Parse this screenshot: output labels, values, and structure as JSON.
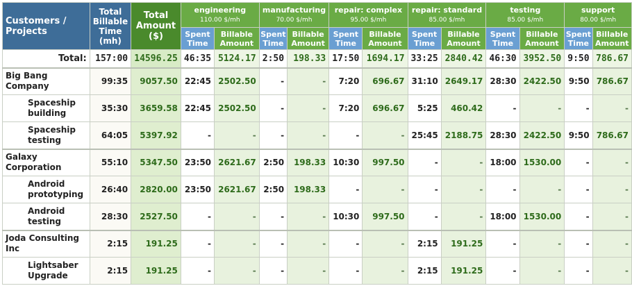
{
  "headers": {
    "customers": "Customers / Projects",
    "total_billable": "Total Billable Time (mh)",
    "total_amount": "Total Amount ($)",
    "spent_time": "Spent Time",
    "billable_amount": "Billable Amount"
  },
  "categories": [
    {
      "name": "engineering",
      "rate": "110.00 $/mh"
    },
    {
      "name": "manufacturing",
      "rate": "70.00 $/mh"
    },
    {
      "name": "repair: complex",
      "rate": "95.00 $/mh"
    },
    {
      "name": "repair: standard",
      "rate": "85.00 $/mh"
    },
    {
      "name": "testing",
      "rate": "85.00 $/mh"
    },
    {
      "name": "support",
      "rate": "80.00 $/mh"
    }
  ],
  "total": {
    "label": "Total:",
    "time": "157:00",
    "amount": "14596.25",
    "cells": [
      "46:35",
      "5124.17",
      "2:50",
      "198.33",
      "17:50",
      "1694.17",
      "33:25",
      "2840.42",
      "46:30",
      "3952.50",
      "9:50",
      "786.67"
    ]
  },
  "rows": [
    {
      "name": "Big Bang Company",
      "time": "99:35",
      "amount": "9057.50",
      "cells": [
        "22:45",
        "2502.50",
        "-",
        "-",
        "7:20",
        "696.67",
        "31:10",
        "2649.17",
        "28:30",
        "2422.50",
        "9:50",
        "786.67"
      ]
    },
    {
      "name": "Spaceship building",
      "time": "35:30",
      "amount": "3659.58",
      "cells": [
        "22:45",
        "2502.50",
        "-",
        "-",
        "7:20",
        "696.67",
        "5:25",
        "460.42",
        "-",
        "-",
        "-",
        "-"
      ]
    },
    {
      "name": "Spaceship testing",
      "time": "64:05",
      "amount": "5397.92",
      "cells": [
        "-",
        "-",
        "-",
        "-",
        "-",
        "-",
        "25:45",
        "2188.75",
        "28:30",
        "2422.50",
        "9:50",
        "786.67"
      ]
    },
    {
      "name": "Galaxy Corporation",
      "time": "55:10",
      "amount": "5347.50",
      "cells": [
        "23:50",
        "2621.67",
        "2:50",
        "198.33",
        "10:30",
        "997.50",
        "-",
        "-",
        "18:00",
        "1530.00",
        "-",
        "-"
      ]
    },
    {
      "name": "Android prototyping",
      "time": "26:40",
      "amount": "2820.00",
      "cells": [
        "23:50",
        "2621.67",
        "2:50",
        "198.33",
        "-",
        "-",
        "-",
        "-",
        "-",
        "-",
        "-",
        "-"
      ]
    },
    {
      "name": "Android testing",
      "time": "28:30",
      "amount": "2527.50",
      "cells": [
        "-",
        "-",
        "-",
        "-",
        "10:30",
        "997.50",
        "-",
        "-",
        "18:00",
        "1530.00",
        "-",
        "-"
      ]
    },
    {
      "name": "Joda Consulting Inc",
      "time": "2:15",
      "amount": "191.25",
      "cells": [
        "-",
        "-",
        "-",
        "-",
        "-",
        "-",
        "2:15",
        "191.25",
        "-",
        "-",
        "-",
        "-"
      ]
    },
    {
      "name": "Lightsaber Upgrade",
      "time": "2:15",
      "amount": "191.25",
      "cells": [
        "-",
        "-",
        "-",
        "-",
        "-",
        "-",
        "2:15",
        "191.25",
        "-",
        "-",
        "-",
        "-"
      ]
    }
  ]
}
